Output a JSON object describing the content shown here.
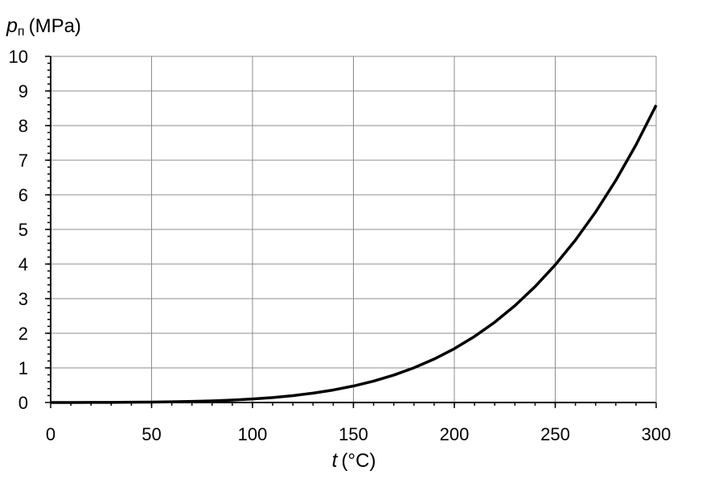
{
  "chart_data": {
    "type": "line",
    "y_label": {
      "symbol": "p",
      "subscript": "п",
      "unit": "(MPa)"
    },
    "x_label": {
      "symbol": "t",
      "unit": "(°C)"
    },
    "x": [
      0,
      10,
      20,
      30,
      40,
      50,
      60,
      70,
      80,
      90,
      100,
      110,
      120,
      130,
      140,
      150,
      160,
      170,
      180,
      190,
      200,
      210,
      220,
      230,
      240,
      250,
      260,
      270,
      280,
      290,
      300
    ],
    "values": [
      0.0006,
      0.0012,
      0.0023,
      0.0042,
      0.0074,
      0.0123,
      0.0199,
      0.0312,
      0.0474,
      0.0702,
      0.1014,
      0.1434,
      0.1987,
      0.2703,
      0.3615,
      0.4762,
      0.6182,
      0.7922,
      1.0028,
      1.2552,
      1.5549,
      1.9077,
      2.3196,
      2.7971,
      3.3469,
      3.9762,
      4.6923,
      5.503,
      6.4166,
      7.4418,
      8.5879
    ],
    "color": "#000000",
    "xlim": [
      0,
      300
    ],
    "xticks": [
      0,
      50,
      100,
      150,
      200,
      250,
      300
    ],
    "ylim": [
      0,
      10
    ],
    "yticks": [
      0,
      1,
      2,
      3,
      4,
      5,
      6,
      7,
      8,
      9,
      10
    ],
    "minor_tick_step": {
      "x": 10,
      "y": 0.2
    },
    "grid": true
  }
}
